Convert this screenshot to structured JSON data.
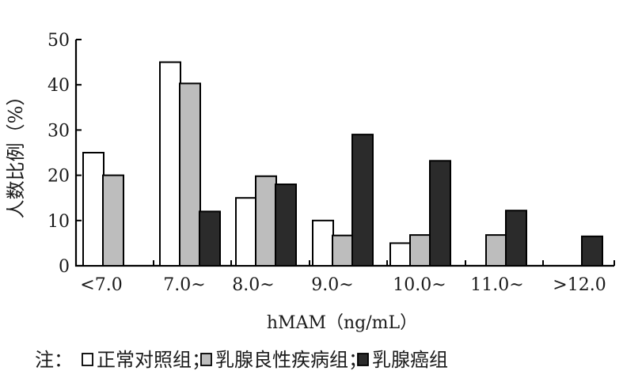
{
  "chart_data": {
    "type": "bar",
    "ylabel": "人数比例（%）",
    "xlabel": "hMAM（ng/mL）",
    "ylim": [
      0,
      50
    ],
    "yticks": [
      0,
      10,
      20,
      30,
      40,
      50
    ],
    "categories": [
      "<7.0",
      "7.0~",
      "8.0~",
      "9.0~",
      "10.0~",
      "11.0~",
      ">12.0"
    ],
    "series": [
      {
        "name": "正常对照组",
        "color": "#ffffff",
        "values": [
          25,
          45,
          15,
          10,
          5,
          0,
          0
        ]
      },
      {
        "name": "乳腺良性疾病组",
        "color": "#bdbdbd",
        "values": [
          20,
          40.3,
          19.8,
          6.7,
          6.8,
          6.8,
          0
        ]
      },
      {
        "name": "乳腺癌组",
        "color": "#2b2b2b",
        "values": [
          0,
          12,
          18,
          29,
          23.2,
          12.2,
          6.5
        ]
      }
    ],
    "legend": {
      "prefix": "注：",
      "separator": "；",
      "placement": "bottom"
    },
    "grid": false
  }
}
